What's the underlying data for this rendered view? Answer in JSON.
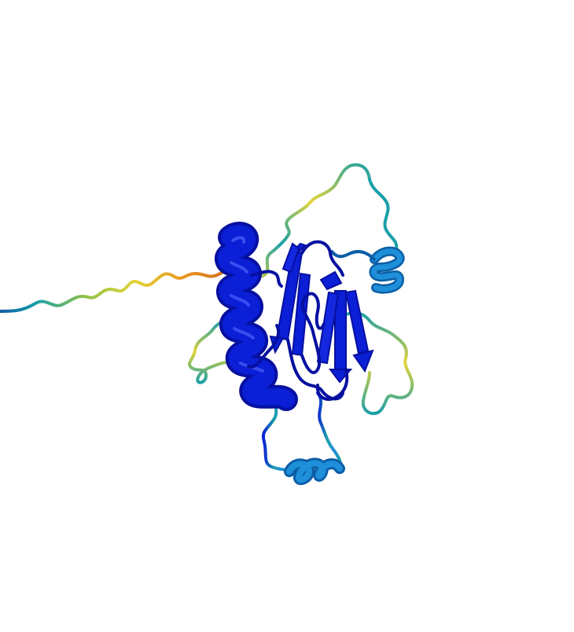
{
  "image": {
    "subject": "protein-structure-cartoon",
    "background": "#ffffff",
    "palette": {
      "very_high": "#0a1fd6",
      "very_high_dark": "#0610a0",
      "confident": "#1e8fd8",
      "confident_dark": "#0b5ea6",
      "low_teal": "#1aa0a8",
      "low_yellow": "#e4d43a",
      "very_low": "#e58a1c",
      "very_low_dark": "#c0661a"
    }
  }
}
